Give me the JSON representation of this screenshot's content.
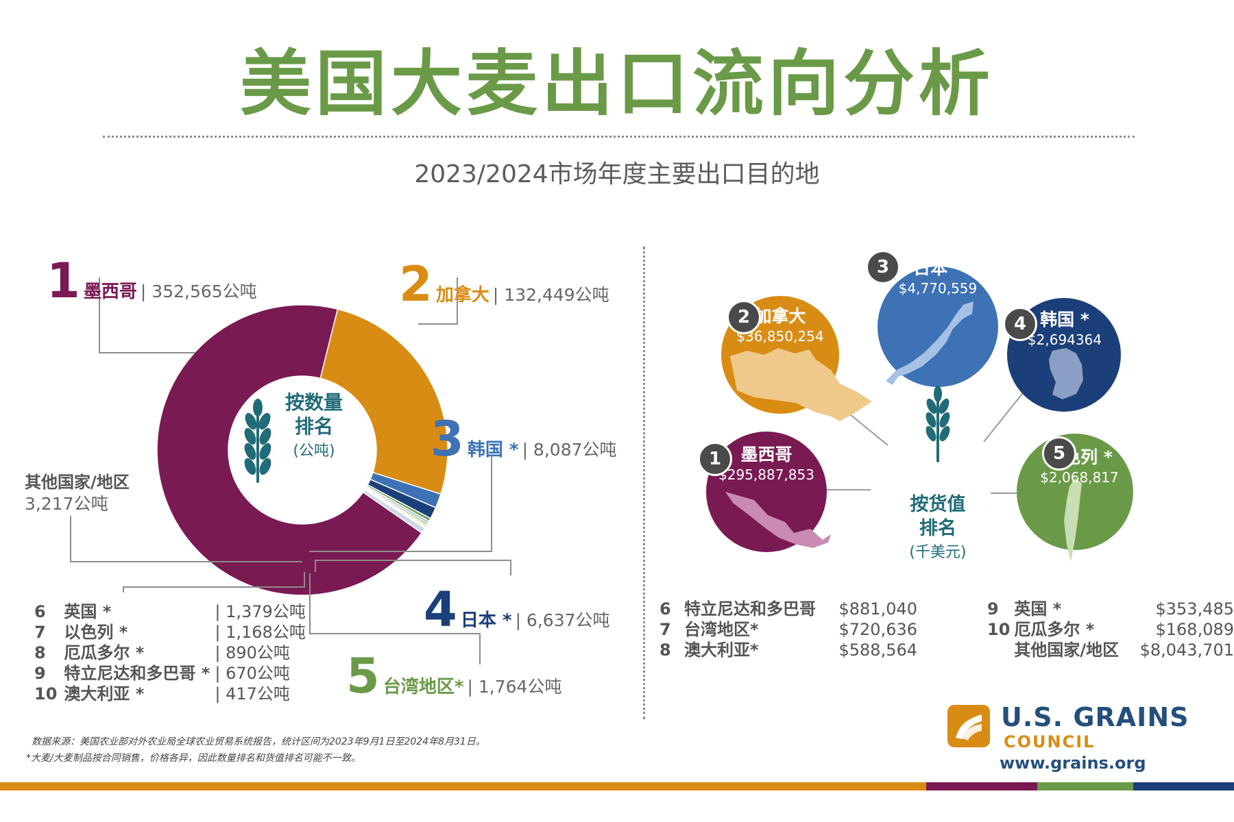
{
  "title": "美国大麦出口流向分析",
  "subtitle": "2023/2024市场年度主要出口目的地",
  "colors": {
    "green": "#6a9a47",
    "purple": "#7a1a52",
    "orange": "#d98c14",
    "blue": "#3d72b5",
    "navy": "#1b3f79",
    "teal": "#226b78"
  },
  "volume": {
    "center_line1": "按数量",
    "center_line2": "排名",
    "center_unit": "(公吨)",
    "top": [
      {
        "rank": "1",
        "name": "墨西哥",
        "value": "| 352,565公吨"
      },
      {
        "rank": "2",
        "name": "加拿大",
        "value": "| 132,449公吨"
      },
      {
        "rank": "3",
        "name": "韩国 *",
        "value": "| 8,087公吨"
      },
      {
        "rank": "4",
        "name": "日本 *",
        "value": "| 6,637公吨"
      },
      {
        "rank": "5",
        "name": "台湾地区*",
        "value": "| 1,764公吨"
      }
    ],
    "other_name": "其他国家/地区",
    "other_value": "3,217公吨",
    "minor": [
      {
        "rank": "6",
        "name": "英国 *",
        "value": "| 1,379公吨"
      },
      {
        "rank": "7",
        "name": "以色列 *",
        "value": "| 1,168公吨"
      },
      {
        "rank": "8",
        "name": "厄瓜多尔 *",
        "value": "| 890公吨"
      },
      {
        "rank": "9",
        "name": "特立尼达和多巴哥 *",
        "value": "| 670公吨"
      },
      {
        "rank": "10",
        "name": "澳大利亚 *",
        "value": "| 417公吨"
      }
    ]
  },
  "value": {
    "center_line1": "按货值",
    "center_line2": "排名",
    "center_unit": "(千美元)",
    "top": [
      {
        "rank": "1",
        "name": "墨西哥",
        "value": "$295,887,853"
      },
      {
        "rank": "2",
        "name": "加拿大",
        "value": "$36,850,254"
      },
      {
        "rank": "3",
        "name": "日本 *",
        "value": "$4,770,559"
      },
      {
        "rank": "4",
        "name": "韩国 *",
        "value": "$2,694364"
      },
      {
        "rank": "5",
        "name": "以色列 *",
        "value": "$2,068,817"
      }
    ],
    "minor_left": [
      {
        "rank": "6",
        "name": "特立尼达和多巴哥",
        "value": "$881,040"
      },
      {
        "rank": "7",
        "name": "台湾地区*",
        "value": "$720,636"
      },
      {
        "rank": "8",
        "name": "澳大利亚*",
        "value": "$588,564"
      }
    ],
    "minor_right": [
      {
        "rank": "9",
        "name": "英国 *",
        "value": "$353,485"
      },
      {
        "rank": "10",
        "name": "厄瓜多尔 *",
        "value": "$168,089"
      },
      {
        "rank": "",
        "name": "其他国家/地区",
        "value": "$8,043,701"
      }
    ]
  },
  "chart_data": [
    {
      "type": "pie",
      "categories": [
        "墨西哥",
        "加拿大",
        "韩国",
        "日本",
        "台湾地区",
        "英国",
        "以色列",
        "厄瓜多尔",
        "特立尼达和多巴哥",
        "澳大利亚",
        "其他国家/地区"
      ],
      "values": [
        352565,
        132449,
        8087,
        6637,
        1764,
        1379,
        1168,
        890,
        670,
        417,
        3217
      ],
      "colors": [
        "#7a1a52",
        "#d98c14",
        "#3d72b5",
        "#1b3f79",
        "#6a9a47",
        "#9ab7d6",
        "#8fbf6a",
        "#e6b85c",
        "#226b78",
        "#b07aa1",
        "#cfd9e6"
      ]
    },
    {
      "type": "table",
      "categories": [
        "墨西哥",
        "加拿大",
        "日本",
        "韩国",
        "以色列",
        "特立尼达和多巴哥",
        "台湾地区",
        "澳大利亚",
        "英国",
        "厄瓜多尔",
        "其他国家/地区"
      ],
      "values": [
        295887853,
        36850254,
        4770559,
        2694364,
        2068817,
        881040,
        720636,
        588564,
        353485,
        168089,
        8043701
      ]
    }
  ],
  "footnote1": "数据来源：美国农业部对外农业局全球农业贸易系统报告，统计区间为2023年9月1日至2024年8月31日。",
  "footnote2": "*大麦/大麦制品按合同销售，价格各异，因此数量排名和货值排名可能不一致。",
  "logo": {
    "name": "U.S. GRAINS",
    "sub": "COUNCIL",
    "url": "www.grains.org"
  },
  "bottom_stripe": [
    "#d98c14",
    "#7a1a52",
    "#6a9a47",
    "#1b3f79"
  ]
}
